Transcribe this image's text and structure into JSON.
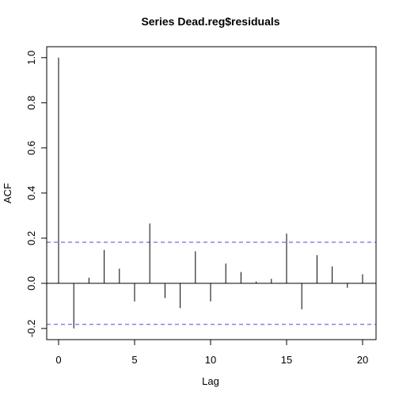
{
  "chart_data": {
    "type": "bar",
    "title": "Series  Dead.reg$residuals",
    "xlabel": "Lag",
    "ylabel": "ACF",
    "xlim": [
      0,
      20
    ],
    "ylim": [
      -0.2,
      1.0
    ],
    "x_ticks": [
      0,
      5,
      10,
      15,
      20
    ],
    "y_ticks": [
      -0.2,
      0.0,
      0.2,
      0.4,
      0.6,
      0.8,
      1.0
    ],
    "x_tick_labels": [
      "0",
      "5",
      "10",
      "15",
      "20"
    ],
    "y_tick_labels": [
      "-0.2",
      "0.0",
      "0.2",
      "0.4",
      "0.6",
      "0.8",
      "1.0"
    ],
    "lags": [
      0,
      1,
      2,
      3,
      4,
      5,
      6,
      7,
      8,
      9,
      10,
      11,
      12,
      13,
      14,
      15,
      16,
      17,
      18,
      19,
      20
    ],
    "acf": [
      1.0,
      -0.2,
      0.025,
      0.148,
      0.065,
      -0.08,
      0.265,
      -0.065,
      -0.11,
      0.142,
      -0.08,
      0.088,
      0.05,
      0.008,
      0.02,
      0.22,
      -0.115,
      0.125,
      0.075,
      -0.02,
      0.04
    ],
    "confidence_bounds": [
      0.182,
      -0.182
    ],
    "confidence_line_color": "#4a4ad8",
    "grid": false
  }
}
